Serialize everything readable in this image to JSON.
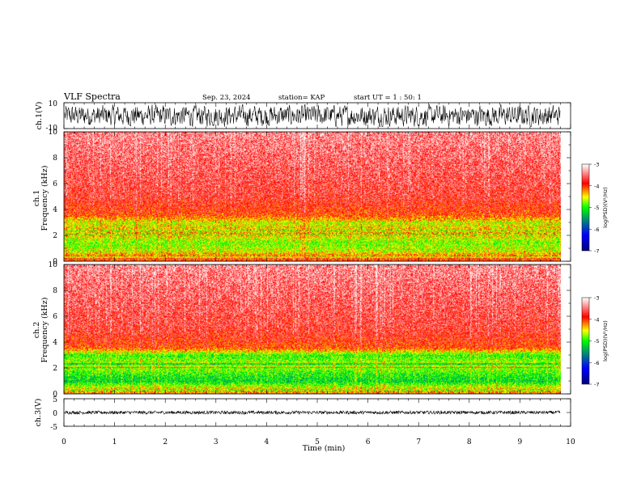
{
  "header": {
    "title": "VLF Spectra",
    "date": "Sep. 23, 2024",
    "station": "station= KAP",
    "start_ut": "start UT =  1 : 50: 1"
  },
  "colors": {
    "background": "#ffffff",
    "axis": "#000000",
    "waveform": "#000000",
    "colormap": [
      "#00007f",
      "#0000ff",
      "#00ff00",
      "#ffff00",
      "#ff0000",
      "#ffffff"
    ]
  },
  "chart_data": [
    {
      "type": "line",
      "ylabel": "ch.1(V)",
      "ylim": [
        -10,
        10
      ],
      "yticks": [
        "10",
        "-10"
      ],
      "xlim": [
        0,
        10
      ],
      "description_level": "noisy waveform spanning roughly -8 to +8 V"
    },
    {
      "type": "heatmap",
      "ylabel": "ch.1\nFrequency (kHz)",
      "ylabel_top": "ch.1",
      "ylabel_bottom": "Frequency (kHz)",
      "ylim": [
        0,
        10
      ],
      "yticks": [
        "0",
        "2",
        "4",
        "6",
        "8",
        "10"
      ],
      "xlim": [
        0,
        10
      ],
      "data_end_min": 9.8,
      "band_profile_khz_level": [
        [
          0.3,
          -4.0
        ],
        [
          0.8,
          -4.6
        ],
        [
          1.5,
          -4.8
        ],
        [
          2.2,
          -4.3
        ],
        [
          3.0,
          -4.6
        ],
        [
          3.6,
          -4.0
        ],
        [
          5.0,
          -3.7
        ],
        [
          10.0,
          -3.4
        ]
      ],
      "colorbar": {
        "label": "log(PSD)(V²/Hz)",
        "range": [
          -7,
          -3
        ],
        "ticks": [
          "-3",
          "-4",
          "-5",
          "-6",
          "-7"
        ]
      }
    },
    {
      "type": "heatmap",
      "ylabel": "ch.2\nFrequency (kHz)",
      "ylabel_top": "ch.2",
      "ylabel_bottom": "Frequency (kHz)",
      "ylim": [
        0,
        10
      ],
      "yticks": [
        "0",
        "2",
        "4",
        "6",
        "8",
        "10"
      ],
      "xlim": [
        0,
        10
      ],
      "data_end_min": 9.8,
      "band_profile_khz_level": [
        [
          0.3,
          -4.3
        ],
        [
          1.0,
          -5.2
        ],
        [
          1.6,
          -5.0
        ],
        [
          2.2,
          -4.6
        ],
        [
          3.0,
          -5.0
        ],
        [
          3.6,
          -4.0
        ],
        [
          5.0,
          -3.7
        ],
        [
          10.0,
          -3.4
        ]
      ],
      "colorbar": {
        "label": "log(PSD)(V²/Hz)",
        "range": [
          -7,
          -3
        ],
        "ticks": [
          "-3",
          "-4",
          "-5",
          "-6",
          "-7"
        ]
      }
    },
    {
      "type": "line",
      "ylabel": "ch.3(V)",
      "ylim": [
        -5,
        5
      ],
      "yticks": [
        "5",
        "0",
        "-5"
      ],
      "xlim": [
        0,
        10
      ],
      "xlabel": "Time (min)",
      "xticks": [
        "0",
        "1",
        "2",
        "3",
        "4",
        "5",
        "6",
        "7",
        "8",
        "9",
        "10"
      ],
      "description_level": "dense waveform centered near 0 V, amplitude about 0.5 V"
    }
  ]
}
